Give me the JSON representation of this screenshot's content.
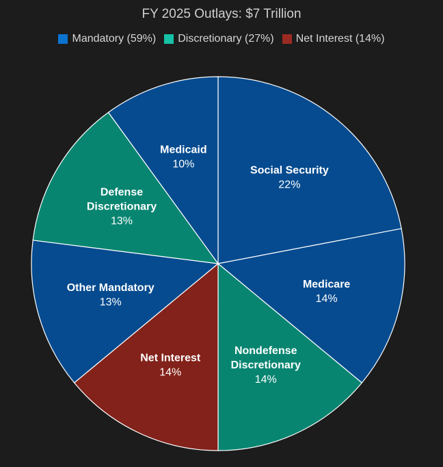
{
  "chart_data": {
    "type": "pie",
    "title": "FY 2025 Outlays: $7 Trillion",
    "legend_position": "top",
    "legend": [
      {
        "label": "Mandatory (59%)",
        "color": "#0b74d0"
      },
      {
        "label": "Discretionary (27%)",
        "color": "#16c2a6"
      },
      {
        "label": "Net Interest (14%)",
        "color": "#9b2a22"
      }
    ],
    "slices": [
      {
        "name": "Social Security",
        "lines": [
          "Social Security"
        ],
        "value": 22,
        "label": "22%",
        "color": "#064b8f"
      },
      {
        "name": "Medicare",
        "lines": [
          "Medicare"
        ],
        "value": 14,
        "label": "14%",
        "color": "#064b8f"
      },
      {
        "name": "Nondefense Discretionary",
        "lines": [
          "Nondefense",
          "Discretionary"
        ],
        "value": 14,
        "label": "14%",
        "color": "#088571"
      },
      {
        "name": "Net Interest",
        "lines": [
          "Net Interest"
        ],
        "value": 14,
        "label": "14%",
        "color": "#83221a"
      },
      {
        "name": "Other Mandatory",
        "lines": [
          "Other Mandatory"
        ],
        "value": 13,
        "label": "13%",
        "color": "#064b8f"
      },
      {
        "name": "Defense Discretionary",
        "lines": [
          "Defense",
          "Discretionary"
        ],
        "value": 13,
        "label": "13%",
        "color": "#088571"
      },
      {
        "name": "Medicaid",
        "lines": [
          "Medicaid"
        ],
        "value": 10,
        "label": "10%",
        "color": "#064b8f"
      }
    ]
  }
}
